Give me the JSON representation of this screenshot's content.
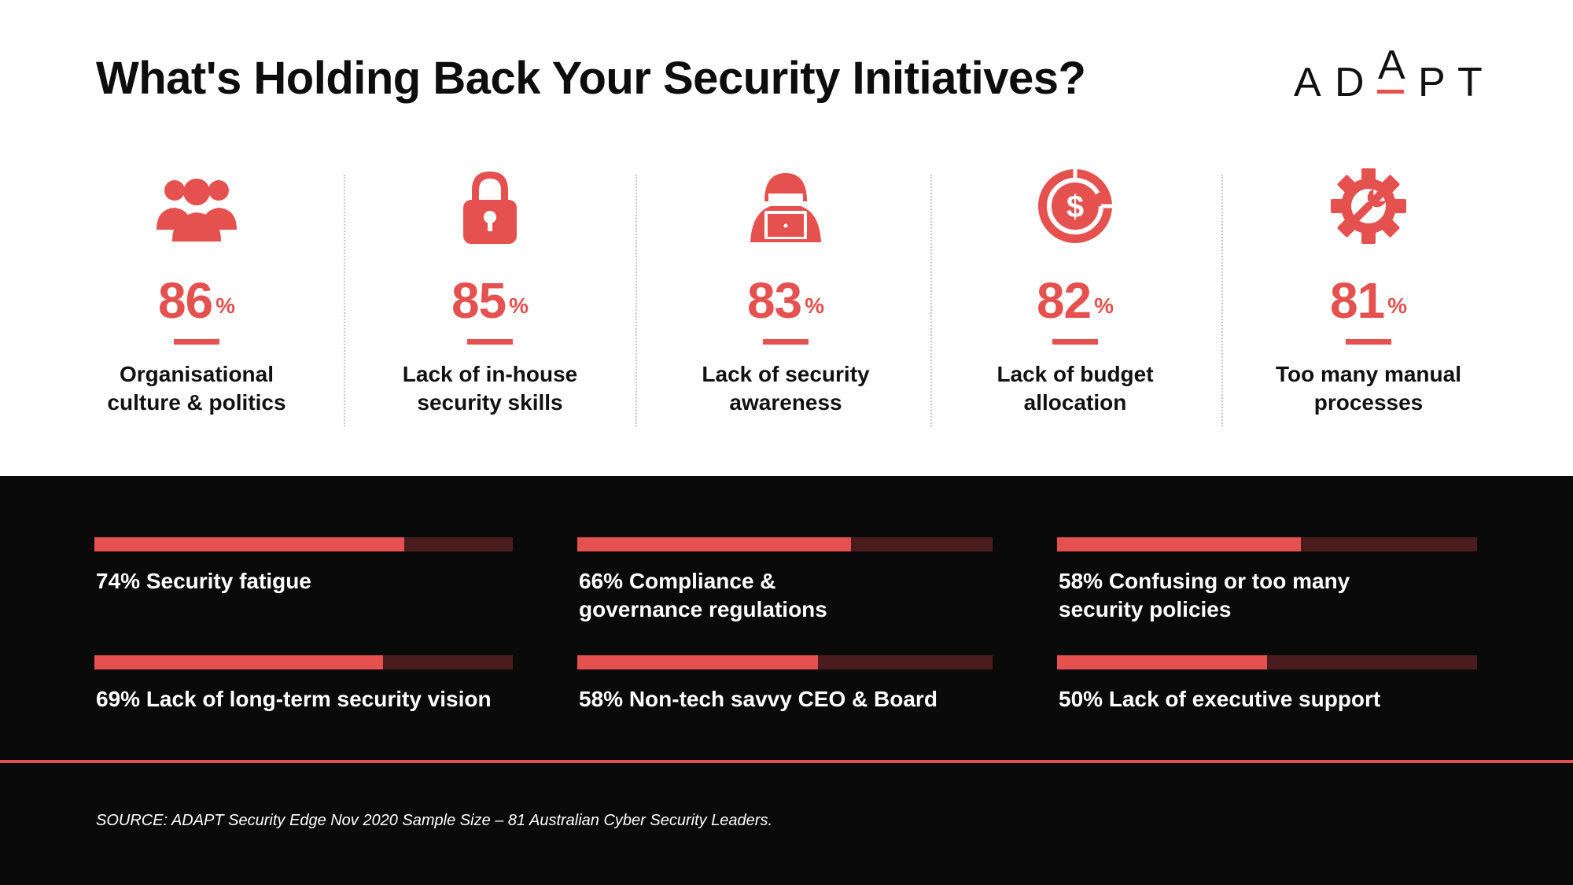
{
  "title": "What's Holding Back Your Security Initiatives?",
  "logo": {
    "letters": [
      "A",
      "D",
      "A",
      "P",
      "T"
    ],
    "accent_color": "#e4514f"
  },
  "colors": {
    "accent": "#e4514f",
    "track": "#4a1c1e",
    "dark_bg": "#0b0a0a"
  },
  "chart_data": [
    {
      "type": "table",
      "items": [
        {
          "value": 86,
          "unit": "%",
          "label": "Organisational\nculture & politics",
          "icon": "people-group-icon"
        },
        {
          "value": 85,
          "unit": "%",
          "label": "Lack of in-house\nsecurity skills",
          "icon": "padlock-icon"
        },
        {
          "value": 83,
          "unit": "%",
          "label": "Lack of security\nawareness",
          "icon": "hacker-laptop-icon"
        },
        {
          "value": 82,
          "unit": "%",
          "label": "Lack of budget\nallocation",
          "icon": "dollar-pie-icon"
        },
        {
          "value": 81,
          "unit": "%",
          "label": "Too many manual\nprocesses",
          "icon": "gear-wrench-icon"
        }
      ]
    },
    {
      "type": "bar",
      "ylim": [
        0,
        100
      ],
      "items": [
        {
          "value": 74,
          "label": "74% Security fatigue"
        },
        {
          "value": 66,
          "label": "66% Compliance &\ngovernance regulations"
        },
        {
          "value": 58,
          "label": "58% Confusing or too many\nsecurity policies"
        },
        {
          "value": 69,
          "label": "69% Lack of long-term security vision"
        },
        {
          "value": 58,
          "label": "58% Non-tech savvy CEO & Board"
        },
        {
          "value": 50,
          "label": "50% Lack of executive support"
        }
      ]
    }
  ],
  "source": "SOURCE: ADAPT Security Edge Nov 2020 Sample Size – 81 Australian Cyber Security Leaders."
}
